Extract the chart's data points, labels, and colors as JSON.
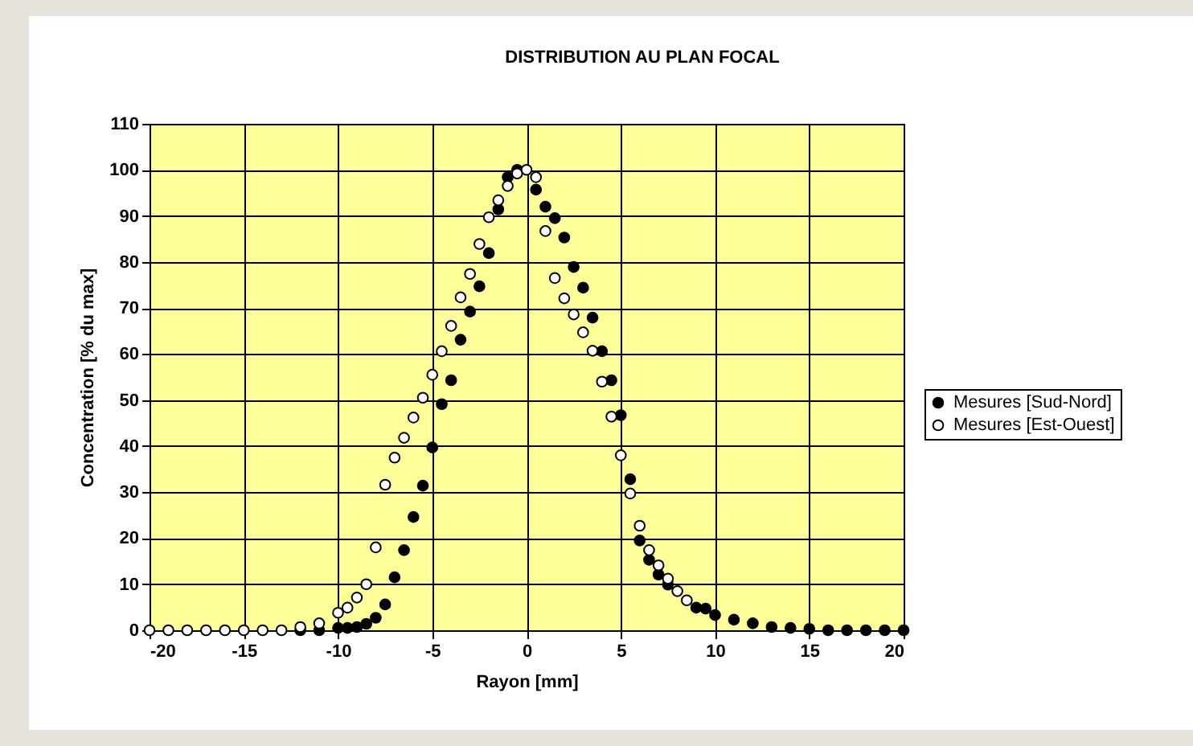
{
  "chart_data": {
    "type": "scatter",
    "title": "DISTRIBUTION AU PLAN FOCAL",
    "xlabel": "Rayon [mm]",
    "ylabel": "Concentration [% du max]",
    "xlim": [
      -20,
      20
    ],
    "xticks": [
      -20,
      -15,
      -10,
      -5,
      0,
      5,
      10,
      15,
      20
    ],
    "ylim": [
      0,
      110
    ],
    "yticks": [
      0,
      10,
      20,
      30,
      40,
      50,
      60,
      70,
      80,
      90,
      100,
      110
    ],
    "grid": true,
    "legend": "right",
    "marker": "circle",
    "series": [
      {
        "name": "Mesures [Sud-Nord]",
        "color": "#000000",
        "x": [
          -12,
          -11,
          -10,
          -9.5,
          -9,
          -8.5,
          -8,
          -7.5,
          -7,
          -6.5,
          -6,
          -5.5,
          -5,
          -4.5,
          -4,
          -3.5,
          -3,
          -2.5,
          -2,
          -1.5,
          -1,
          -0.5,
          0.5,
          1,
          1.5,
          2,
          2.5,
          3,
          3.5,
          4,
          4.5,
          5,
          5.5,
          6,
          6.5,
          7,
          7.5,
          9,
          9.5,
          10,
          11,
          12,
          13,
          14,
          15,
          16,
          17,
          18,
          19,
          20
        ],
        "values": [
          0,
          0,
          0.5,
          0.5,
          0.7,
          1.4,
          2.7,
          5.6,
          11.5,
          17.4,
          24.6,
          31.4,
          39.7,
          49.1,
          54.3,
          63.1,
          69.2,
          74.7,
          81.9,
          91.4,
          98.4,
          100,
          95.7,
          92,
          89.5,
          85.3,
          78.9,
          74.4,
          67.9,
          60.6,
          54.3,
          46.7,
          32.8,
          19.5,
          15.3,
          12.1,
          9.9,
          4.9,
          4.7,
          3.3,
          2.3,
          1.5,
          0.7,
          0.5,
          0.3,
          0,
          0,
          0,
          0,
          0
        ]
      },
      {
        "name": "Mesures [Est-Ouest]",
        "color": "#ffffff",
        "x": [
          -20,
          -19,
          -18,
          -17,
          -16,
          -15,
          -14,
          -13,
          -12,
          -11,
          -10,
          -9.5,
          -9,
          -8.5,
          -8,
          -7.5,
          -7,
          -6.5,
          -6,
          -5.5,
          -5,
          -4.5,
          -4,
          -3.5,
          -3,
          -2.5,
          -2,
          -1.5,
          -1,
          -0.5,
          0,
          0.5,
          1,
          1.5,
          2,
          2.5,
          3,
          3.5,
          4,
          4.5,
          5,
          5.5,
          6,
          6.5,
          7,
          7.5,
          8,
          8.5
        ],
        "values": [
          0,
          0,
          0,
          0,
          0,
          0,
          0,
          0,
          0.7,
          1.5,
          3.8,
          4.9,
          7.1,
          10,
          18,
          31.6,
          37.5,
          41.8,
          46.2,
          50.5,
          55.5,
          60.6,
          66.1,
          72.3,
          77.4,
          83.9,
          89.7,
          93.4,
          96.5,
          99.2,
          100,
          98.4,
          86.7,
          76.5,
          72.1,
          68.6,
          64.7,
          60.7,
          54,
          46.4,
          38,
          29.7,
          22.7,
          17.4,
          14.1,
          11.2,
          8.5,
          6.5
        ]
      }
    ]
  }
}
